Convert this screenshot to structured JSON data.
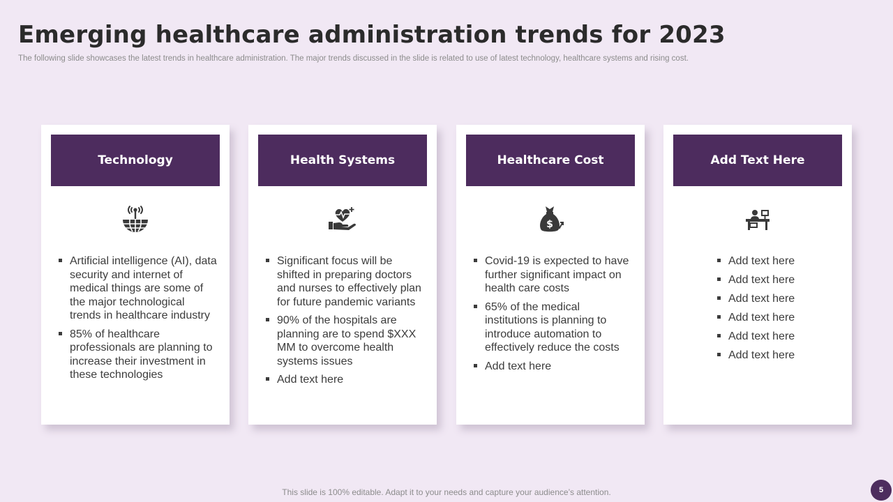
{
  "slide": {
    "title": "Emerging healthcare administration trends for 2023",
    "subtitle": "The following slide showcases the latest trends in healthcare administration. The major trends discussed in the slide is related to use of latest technology, healthcare systems and rising cost.",
    "footer": "This slide is 100% editable. Adapt it to your needs and capture your audience’s attention.",
    "page_number": "5"
  },
  "cards": [
    {
      "heading": "Technology",
      "icon": "network-globe-icon",
      "bullets": [
        "Artificial intelligence (AI), data security and internet of medical things are some of the major technological trends in healthcare industry",
        "85% of healthcare professionals are planning to increase their investment in these technologies"
      ]
    },
    {
      "heading": "Health Systems",
      "icon": "heart-hand-icon",
      "bullets": [
        "Significant focus will be shifted in preparing doctors and nurses to effectively plan for future pandemic variants",
        "90% of the hospitals are planning are to spend $XXX MM to overcome health systems issues",
        "Add text here"
      ]
    },
    {
      "heading": "Healthcare Cost",
      "icon": "money-bag-icon",
      "bullets": [
        "Covid-19 is expected to have further significant impact on health care costs",
        " 65% of the medical institutions is planning to introduce automation to effectively reduce the costs",
        "Add text here"
      ]
    },
    {
      "heading": "Add Text Here",
      "icon": "desk-person-icon",
      "bullets": [
        "Add text here",
        "Add text here",
        "Add text here",
        "Add text here",
        "Add text here",
        "Add text here"
      ]
    }
  ],
  "colors": {
    "background": "#f1e8f4",
    "header_fill": "#4d2c5e",
    "icon": "#3a3a3a"
  }
}
